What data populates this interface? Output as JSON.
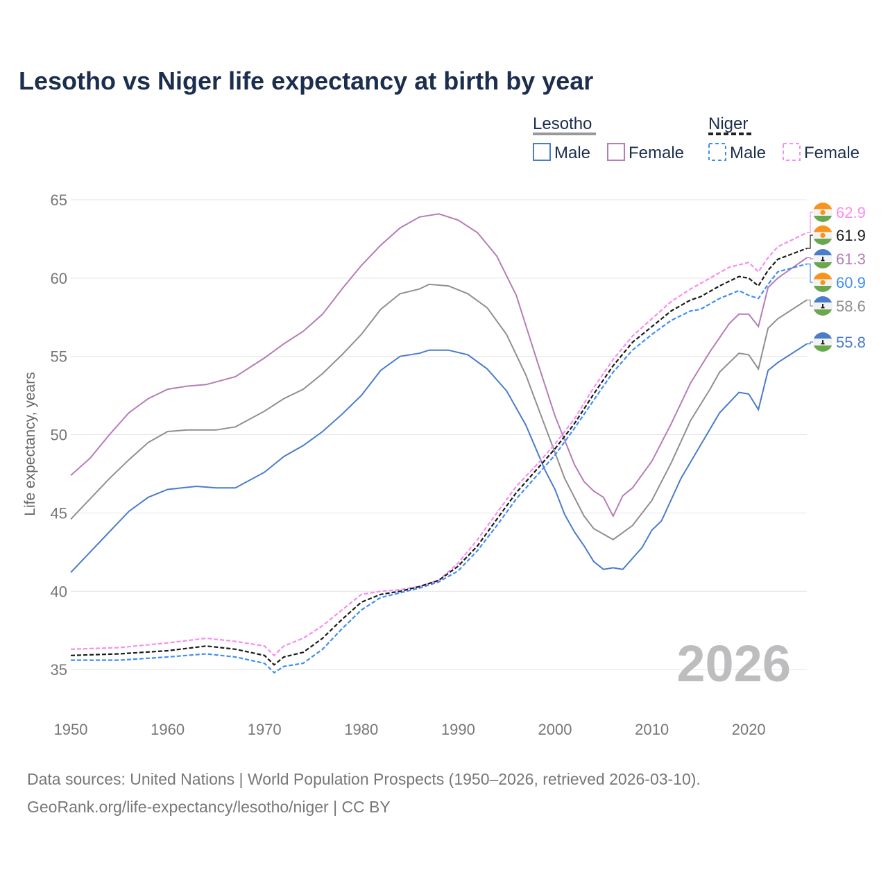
{
  "chart_data": {
    "type": "line",
    "title": "Lesotho vs Niger life expectancy at birth by year",
    "xlabel": "",
    "ylabel": "Life expectancy, years",
    "xlim": [
      1950,
      2026
    ],
    "ylim": [
      33,
      65.5
    ],
    "x_ticks": [
      "1950",
      "1960",
      "1970",
      "1980",
      "1990",
      "2000",
      "2010",
      "2020"
    ],
    "y_ticks": [
      "35",
      "40",
      "45",
      "50",
      "55",
      "60",
      "65"
    ],
    "grid": "horizontal",
    "watermark_year": "2026",
    "legend": {
      "placement": "top-right",
      "groups": [
        {
          "title": "Lesotho",
          "items": [
            "Male",
            "Female"
          ]
        },
        {
          "title": "Niger",
          "items": [
            "Male",
            "Female"
          ]
        }
      ]
    },
    "series": [
      {
        "name": "Lesotho Male",
        "country": "Lesotho",
        "color": "#4a7cc9",
        "dash": false,
        "end_label": "55.8",
        "x": [
          1950,
          1952,
          1954,
          1956,
          1958,
          1960,
          1963,
          1965,
          1967,
          1970,
          1972,
          1974,
          1976,
          1978,
          1980,
          1982,
          1984,
          1986,
          1987,
          1989,
          1991,
          1993,
          1995,
          1997,
          1999,
          2000,
          2001,
          2002,
          2003,
          2004,
          2005,
          2006,
          2007,
          2009,
          2010,
          2011,
          2013,
          2015,
          2017,
          2019,
          2020,
          2021,
          2022,
          2023,
          2026
        ],
        "y": [
          41.2,
          42.5,
          43.8,
          45.1,
          46.0,
          46.5,
          46.7,
          46.6,
          46.6,
          47.6,
          48.6,
          49.3,
          50.2,
          51.3,
          52.5,
          54.1,
          55.0,
          55.2,
          55.4,
          55.4,
          55.1,
          54.2,
          52.8,
          50.6,
          47.7,
          46.5,
          44.9,
          43.8,
          42.9,
          41.9,
          41.4,
          41.5,
          41.4,
          42.8,
          43.9,
          44.5,
          47.2,
          49.3,
          51.4,
          52.7,
          52.6,
          51.6,
          54.1,
          54.6,
          55.8
        ]
      },
      {
        "name": "Lesotho Female",
        "country": "Lesotho",
        "color": "#b57cb8",
        "dash": false,
        "end_label": "61.3",
        "x": [
          1950,
          1952,
          1954,
          1956,
          1958,
          1960,
          1962,
          1964,
          1967,
          1970,
          1972,
          1974,
          1976,
          1978,
          1980,
          1982,
          1984,
          1986,
          1988,
          1990,
          1992,
          1994,
          1996,
          1998,
          2000,
          2002,
          2003,
          2004,
          2005,
          2006,
          2007,
          2008,
          2010,
          2012,
          2014,
          2016,
          2018,
          2019,
          2020,
          2021,
          2022,
          2023,
          2026
        ],
        "y": [
          47.4,
          48.5,
          50.0,
          51.4,
          52.3,
          52.9,
          53.1,
          53.2,
          53.7,
          54.9,
          55.8,
          56.6,
          57.7,
          59.3,
          60.8,
          62.1,
          63.2,
          63.9,
          64.1,
          63.7,
          62.9,
          61.4,
          58.9,
          55.0,
          51.2,
          48.1,
          47.0,
          46.4,
          46.0,
          44.8,
          46.1,
          46.6,
          48.3,
          50.7,
          53.3,
          55.3,
          57.1,
          57.7,
          57.7,
          56.9,
          59.4,
          60.0,
          61.3
        ]
      },
      {
        "name": "Lesotho Total",
        "country": "Lesotho",
        "color": "#8f8f8f",
        "dash": false,
        "end_label": "58.6",
        "x": [
          1950,
          1952,
          1954,
          1956,
          1958,
          1960,
          1962,
          1965,
          1967,
          1970,
          1972,
          1974,
          1976,
          1978,
          1980,
          1982,
          1984,
          1986,
          1987,
          1989,
          1991,
          1993,
          1995,
          1997,
          1999,
          2001,
          2003,
          2004,
          2006,
          2008,
          2010,
          2012,
          2014,
          2016,
          2017,
          2019,
          2020,
          2021,
          2022,
          2023,
          2026
        ],
        "y": [
          44.6,
          45.9,
          47.2,
          48.4,
          49.5,
          50.2,
          50.3,
          50.3,
          50.5,
          51.5,
          52.3,
          52.9,
          53.9,
          55.1,
          56.4,
          58.0,
          59.0,
          59.3,
          59.6,
          59.5,
          59.0,
          58.1,
          56.4,
          53.8,
          50.5,
          47.2,
          44.8,
          44.0,
          43.3,
          44.2,
          45.8,
          48.2,
          50.9,
          52.9,
          54.0,
          55.2,
          55.1,
          54.2,
          56.8,
          57.4,
          58.6
        ]
      },
      {
        "name": "Niger Male",
        "country": "Niger",
        "color": "#3f8ef5",
        "dash": true,
        "end_label": "60.9",
        "x": [
          1950,
          1955,
          1960,
          1964,
          1967,
          1970,
          1971,
          1972,
          1974,
          1976,
          1978,
          1980,
          1982,
          1984,
          1986,
          1988,
          1990,
          1992,
          1994,
          1996,
          1998,
          2000,
          2002,
          2004,
          2006,
          2008,
          2010,
          2012,
          2014,
          2015,
          2017,
          2019,
          2020,
          2021,
          2022,
          2023,
          2026
        ],
        "y": [
          35.6,
          35.6,
          35.8,
          36.0,
          35.8,
          35.4,
          34.8,
          35.2,
          35.4,
          36.3,
          37.6,
          38.8,
          39.6,
          39.9,
          40.2,
          40.6,
          41.3,
          42.6,
          44.2,
          45.9,
          47.3,
          48.7,
          50.4,
          52.2,
          54.0,
          55.4,
          56.4,
          57.3,
          57.9,
          58.0,
          58.7,
          59.2,
          58.9,
          58.7,
          59.6,
          60.4,
          60.9
        ]
      },
      {
        "name": "Niger Female",
        "country": "Niger",
        "color": "#f78df0",
        "dash": true,
        "end_label": "62.9",
        "x": [
          1950,
          1955,
          1960,
          1964,
          1967,
          1970,
          1971,
          1972,
          1974,
          1976,
          1978,
          1980,
          1982,
          1984,
          1986,
          1988,
          1990,
          1992,
          1994,
          1996,
          1998,
          2000,
          2002,
          2004,
          2006,
          2008,
          2010,
          2012,
          2014,
          2016,
          2018,
          2020,
          2021,
          2022,
          2023,
          2026
        ],
        "y": [
          36.3,
          36.4,
          36.7,
          37.0,
          36.8,
          36.5,
          35.9,
          36.5,
          37.0,
          37.8,
          38.8,
          39.8,
          40.0,
          40.1,
          40.3,
          40.7,
          41.8,
          43.3,
          45.0,
          46.7,
          48.0,
          49.4,
          51.0,
          53.0,
          54.8,
          56.3,
          57.4,
          58.5,
          59.3,
          60.0,
          60.7,
          61.0,
          60.4,
          61.3,
          62.0,
          62.9
        ]
      },
      {
        "name": "Niger Total",
        "country": "Niger",
        "color": "#1a1a1a",
        "dash": true,
        "end_label": "61.9",
        "x": [
          1950,
          1955,
          1960,
          1964,
          1967,
          1970,
          1971,
          1972,
          1974,
          1976,
          1978,
          1980,
          1982,
          1984,
          1986,
          1988,
          1990,
          1992,
          1994,
          1996,
          1998,
          2000,
          2002,
          2004,
          2006,
          2008,
          2010,
          2012,
          2014,
          2015,
          2017,
          2019,
          2020,
          2021,
          2022,
          2023,
          2026
        ],
        "y": [
          35.9,
          36.0,
          36.2,
          36.5,
          36.3,
          35.9,
          35.3,
          35.8,
          36.1,
          37.0,
          38.2,
          39.3,
          39.8,
          40.0,
          40.3,
          40.7,
          41.6,
          42.9,
          44.6,
          46.3,
          47.7,
          49.1,
          50.7,
          52.6,
          54.4,
          55.9,
          56.9,
          57.9,
          58.6,
          58.8,
          59.5,
          60.1,
          60.0,
          59.5,
          60.5,
          61.2,
          61.9
        ]
      }
    ]
  },
  "footer": {
    "line1": "Data sources: United Nations | World Population Prospects (1950–2026, retrieved 2026-03-10).",
    "line2": "GeoRank.org/life-expectancy/lesotho/niger | CC BY"
  }
}
